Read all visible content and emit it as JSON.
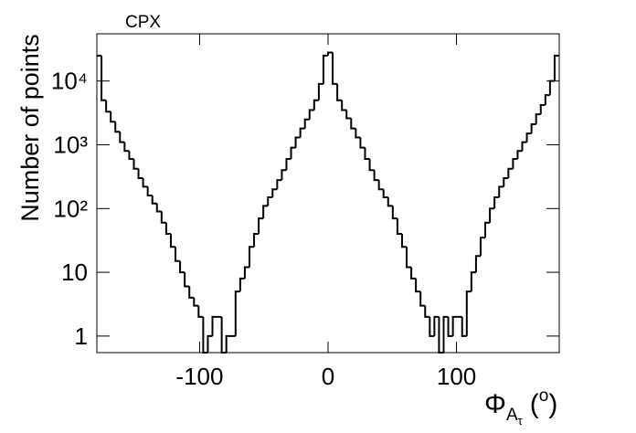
{
  "chart_data": {
    "type": "histogram",
    "title": "CPX",
    "y_label": "Number of points",
    "x_label": {
      "symbol": "Φ",
      "sub": "A",
      "subsub": "τ",
      "open": "(",
      "unit": "o",
      "close": ")"
    },
    "color": "#000000",
    "log_y": true,
    "xlim": [
      -180,
      180
    ],
    "xticks": [
      -100,
      0,
      100
    ],
    "ylim": [
      0.55,
      55000
    ],
    "yticks": [
      1,
      10,
      {
        "value": 100,
        "label": "10²"
      },
      {
        "value": 1000,
        "label": "10³"
      },
      {
        "value": 10000,
        "label": "10⁴"
      }
    ],
    "bins": [
      -180,
      -176.4,
      -172.8,
      -169.2,
      -165.6,
      -162,
      -158.4,
      -154.8,
      -151.2,
      -147.6,
      -144,
      -140.4,
      -136.8,
      -133.2,
      -129.6,
      -126,
      -122.4,
      -118.8,
      -115.2,
      -111.6,
      -108,
      -104.4,
      -100.8,
      -97.2,
      -93.6,
      -90,
      -86.4,
      -82.8,
      -79.2,
      -75.6,
      -72,
      -68.4,
      -64.8,
      -61.2,
      -57.6,
      -54,
      -50.4,
      -46.8,
      -43.2,
      -39.6,
      -36,
      -32.4,
      -28.8,
      -25.2,
      -21.6,
      -18,
      -14.4,
      -10.8,
      -7.2,
      -3.6,
      0,
      3.6,
      7.2,
      10.8,
      14.4,
      18,
      21.6,
      25.2,
      28.8,
      32.4,
      36,
      39.6,
      43.2,
      46.8,
      50.4,
      54,
      57.6,
      61.2,
      64.8,
      68.4,
      72,
      75.6,
      79.2,
      82.8,
      86.4,
      90,
      93.6,
      97.2,
      100.8,
      104.4,
      108,
      111.6,
      115.2,
      118.8,
      122.4,
      126,
      129.6,
      133.2,
      136.8,
      140.4,
      144,
      147.6,
      151.2,
      154.8,
      158.4,
      162,
      165.6,
      169.2,
      172.8,
      176.4,
      180
    ],
    "values": [
      25000,
      5000,
      3300,
      2300,
      1600,
      1100,
      800,
      600,
      420,
      300,
      220,
      160,
      120,
      90,
      60,
      40,
      25,
      15,
      10,
      6,
      4,
      3,
      2,
      0,
      1,
      2,
      2,
      0,
      1,
      1,
      5,
      8,
      12,
      25,
      40,
      70,
      110,
      150,
      200,
      280,
      400,
      600,
      900,
      1300,
      1800,
      2500,
      3500,
      5000,
      9000,
      25000,
      28000,
      9000,
      5000,
      3500,
      2600,
      1800,
      1300,
      900,
      600,
      400,
      280,
      200,
      150,
      110,
      70,
      40,
      25,
      12,
      8,
      5,
      3,
      2,
      1,
      2,
      0,
      2,
      1,
      2,
      2,
      1,
      5,
      10,
      18,
      35,
      60,
      100,
      150,
      220,
      300,
      420,
      600,
      800,
      1100,
      1500,
      2100,
      3000,
      4200,
      6000,
      10000,
      25000
    ]
  }
}
